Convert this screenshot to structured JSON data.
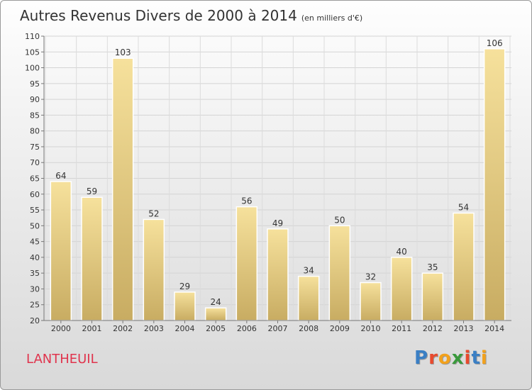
{
  "header": {
    "title": "Autres Revenus Divers de 2000 à 2014",
    "subtitle": "(en milliers d'€)"
  },
  "footer": {
    "place": "LANTHEUIL",
    "logo_text": "Proxiti"
  },
  "colors": {
    "bar_top": "#f6e19c",
    "bar_bottom": "#c8ac62",
    "place": "#e0344d",
    "logo_letters": [
      "#3a7fc4",
      "#e84a2e",
      "#f2a11c",
      "#3a9a3c",
      "#e84a2e",
      "#3a7fc4",
      "#f2a11c"
    ]
  },
  "chart_data": {
    "type": "bar",
    "categories": [
      "2000",
      "2001",
      "2002",
      "2003",
      "2004",
      "2005",
      "2006",
      "2007",
      "2008",
      "2009",
      "2010",
      "2011",
      "2012",
      "2013",
      "2014"
    ],
    "values": [
      64,
      59,
      103,
      52,
      29,
      24,
      56,
      49,
      34,
      50,
      32,
      40,
      35,
      54,
      106
    ],
    "ylim": [
      20,
      110
    ],
    "yticks": [
      20,
      25,
      30,
      35,
      40,
      45,
      50,
      55,
      60,
      65,
      70,
      75,
      80,
      85,
      90,
      95,
      100,
      105,
      110
    ],
    "grid": true,
    "data_labels": true
  }
}
